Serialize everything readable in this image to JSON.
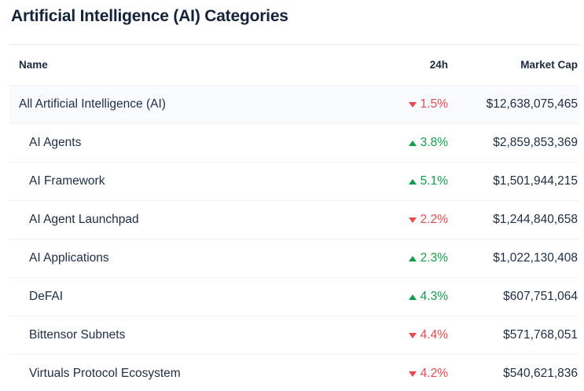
{
  "page_title": "Artificial Intelligence (AI) Categories",
  "colors": {
    "positive": "#0f9e4a",
    "negative": "#e8494e",
    "highlight_row_bg": "#f8fafd"
  },
  "table": {
    "columns": [
      "Name",
      "24h",
      "Market Cap"
    ],
    "rows": [
      {
        "name": "All Artificial Intelligence (AI)",
        "direction": "down",
        "change": "1.5%",
        "market_cap": "$12,638,075,465",
        "highlighted": true,
        "indented": false
      },
      {
        "name": "AI Agents",
        "direction": "up",
        "change": "3.8%",
        "market_cap": "$2,859,853,369",
        "highlighted": false,
        "indented": true
      },
      {
        "name": "AI Framework",
        "direction": "up",
        "change": "5.1%",
        "market_cap": "$1,501,944,215",
        "highlighted": false,
        "indented": true
      },
      {
        "name": "AI Agent Launchpad",
        "direction": "down",
        "change": "2.2%",
        "market_cap": "$1,244,840,658",
        "highlighted": false,
        "indented": true
      },
      {
        "name": "AI Applications",
        "direction": "up",
        "change": "2.3%",
        "market_cap": "$1,022,130,408",
        "highlighted": false,
        "indented": true
      },
      {
        "name": "DeFAI",
        "direction": "up",
        "change": "4.3%",
        "market_cap": "$607,751,064",
        "highlighted": false,
        "indented": true
      },
      {
        "name": "Bittensor Subnets",
        "direction": "down",
        "change": "4.4%",
        "market_cap": "$571,768,051",
        "highlighted": false,
        "indented": true
      },
      {
        "name": "Virtuals Protocol Ecosystem",
        "direction": "down",
        "change": "4.2%",
        "market_cap": "$540,621,836",
        "highlighted": false,
        "indented": true
      }
    ]
  }
}
